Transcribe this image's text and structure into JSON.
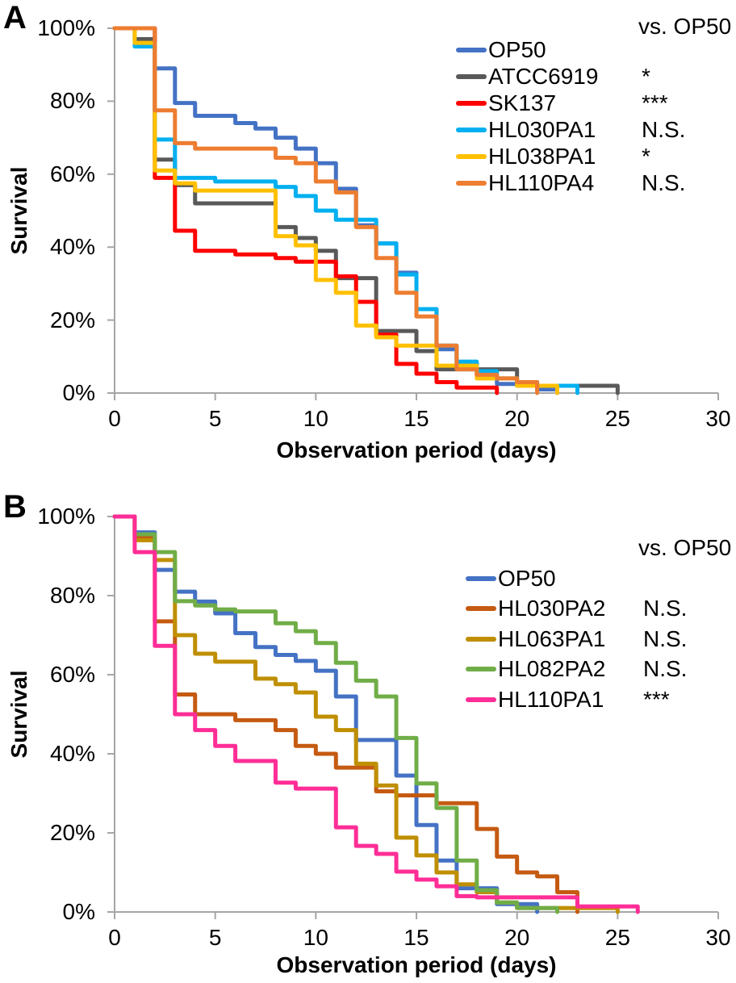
{
  "chart_data": [
    {
      "type": "line",
      "subtype": "kaplan-meier-step",
      "panel": "A",
      "xlabel": "Observation period (days)",
      "ylabel": "Survival",
      "legend_header": "vs. OP50",
      "xlim": [
        0,
        30
      ],
      "ylim": [
        0,
        100
      ],
      "x_ticks": [
        0,
        5,
        10,
        15,
        20,
        25,
        30
      ],
      "x_tick_labels": [
        "0",
        "5",
        "10",
        "15",
        "20",
        "25",
        "30"
      ],
      "y_tick_labels": [
        "100%",
        "80%",
        "60%",
        "40%",
        "20%",
        "0%"
      ],
      "grid": false,
      "legend_position": "upper right",
      "axis_color": "#A6A6A6",
      "series": [
        {
          "name": "OP50",
          "color": "#4472C4",
          "significance_vs_op50": "",
          "points": [
            [
              0,
              100
            ],
            [
              2,
              89
            ],
            [
              3,
              79.5
            ],
            [
              4,
              76
            ],
            [
              6,
              74
            ],
            [
              7,
              72.5
            ],
            [
              8,
              70
            ],
            [
              9,
              67
            ],
            [
              10,
              63
            ],
            [
              11,
              56
            ],
            [
              12,
              46
            ],
            [
              13,
              41
            ],
            [
              14,
              33
            ],
            [
              15,
              23
            ],
            [
              16,
              12
            ],
            [
              17,
              8
            ],
            [
              18,
              5
            ],
            [
              19,
              2.5
            ],
            [
              21,
              1
            ],
            [
              22,
              0
            ]
          ]
        },
        {
          "name": "ATCC6919",
          "color": "#595959",
          "significance_vs_op50": "*",
          "points": [
            [
              0,
              100
            ],
            [
              1,
              97
            ],
            [
              2,
              64
            ],
            [
              3,
              57
            ],
            [
              4,
              52
            ],
            [
              8,
              45.5
            ],
            [
              9,
              42.5
            ],
            [
              10,
              39
            ],
            [
              11,
              31.5
            ],
            [
              13,
              17
            ],
            [
              15,
              11.5
            ],
            [
              16,
              6.5
            ],
            [
              20,
              2
            ],
            [
              25,
              0
            ]
          ]
        },
        {
          "name": "SK137",
          "color": "#FF0000",
          "significance_vs_op50": "***",
          "points": [
            [
              0,
              100
            ],
            [
              2,
              59
            ],
            [
              3,
              44.5
            ],
            [
              4,
              39
            ],
            [
              6,
              38
            ],
            [
              8,
              37
            ],
            [
              9,
              36
            ],
            [
              11,
              32
            ],
            [
              12,
              25
            ],
            [
              13,
              16
            ],
            [
              14,
              8
            ],
            [
              15,
              5.3
            ],
            [
              16,
              3
            ],
            [
              17,
              1.5
            ],
            [
              19,
              0
            ]
          ]
        },
        {
          "name": "HL030PA1",
          "color": "#00B0F0",
          "significance_vs_op50": "N.S.",
          "points": [
            [
              0,
              100
            ],
            [
              1,
              95
            ],
            [
              2,
              69.5
            ],
            [
              3,
              59
            ],
            [
              5,
              58
            ],
            [
              8,
              56.5
            ],
            [
              9,
              54
            ],
            [
              10,
              50
            ],
            [
              11,
              47.5
            ],
            [
              13,
              41
            ],
            [
              14,
              32.5
            ],
            [
              15,
              23
            ],
            [
              16,
              13
            ],
            [
              17,
              8.6
            ],
            [
              18,
              6
            ],
            [
              19,
              4
            ],
            [
              20,
              3
            ],
            [
              21,
              2
            ],
            [
              23,
              0
            ]
          ]
        },
        {
          "name": "HL038PA1",
          "color": "#FFC000",
          "significance_vs_op50": "*",
          "points": [
            [
              0,
              100
            ],
            [
              1,
              96
            ],
            [
              2,
              61
            ],
            [
              3,
              57.5
            ],
            [
              4,
              55.5
            ],
            [
              8,
              43
            ],
            [
              9,
              40.5
            ],
            [
              10,
              31
            ],
            [
              11,
              27.5
            ],
            [
              12,
              18.5
            ],
            [
              13,
              15.3
            ],
            [
              14,
              13
            ],
            [
              16,
              7.5
            ],
            [
              18,
              4
            ],
            [
              20,
              2
            ],
            [
              22,
              0
            ]
          ]
        },
        {
          "name": "HL110PA4",
          "color": "#ED7D31",
          "significance_vs_op50": "N.S.",
          "points": [
            [
              0,
              100
            ],
            [
              2,
              77.5
            ],
            [
              3,
              68.5
            ],
            [
              4,
              67
            ],
            [
              8,
              64.5
            ],
            [
              9,
              63
            ],
            [
              10,
              58
            ],
            [
              11,
              55
            ],
            [
              12,
              45.5
            ],
            [
              13,
              37
            ],
            [
              14,
              27.5
            ],
            [
              15,
              21
            ],
            [
              16,
              13
            ],
            [
              17,
              6.5
            ],
            [
              18,
              5
            ],
            [
              19,
              4
            ],
            [
              20,
              3
            ],
            [
              21,
              0
            ]
          ]
        }
      ]
    },
    {
      "type": "line",
      "subtype": "kaplan-meier-step",
      "panel": "B",
      "xlabel": "Observation period (days)",
      "ylabel": "Survival",
      "legend_header": "vs. OP50",
      "xlim": [
        0,
        30
      ],
      "ylim": [
        0,
        100
      ],
      "x_ticks": [
        0,
        5,
        10,
        15,
        20,
        25,
        30
      ],
      "x_tick_labels": [
        "0",
        "5",
        "10",
        "15",
        "20",
        "25",
        "30"
      ],
      "y_tick_labels": [
        "100%",
        "80%",
        "60%",
        "40%",
        "20%",
        "0%"
      ],
      "grid": false,
      "legend_position": "upper right",
      "axis_color": "#A6A6A6",
      "series": [
        {
          "name": "OP50",
          "color": "#4472C4",
          "significance_vs_op50": "",
          "points": [
            [
              0,
              100
            ],
            [
              1,
              96
            ],
            [
              2,
              86.5
            ],
            [
              3,
              81
            ],
            [
              4,
              78.5
            ],
            [
              5,
              75.5
            ],
            [
              6,
              70.5
            ],
            [
              7,
              67
            ],
            [
              8,
              65
            ],
            [
              9,
              63.5
            ],
            [
              10,
              61
            ],
            [
              11,
              54.5
            ],
            [
              12,
              43.5
            ],
            [
              14,
              34.5
            ],
            [
              15,
              22
            ],
            [
              16,
              13
            ],
            [
              17,
              6
            ],
            [
              19,
              2
            ],
            [
              21,
              0
            ]
          ]
        },
        {
          "name": "HL030PA2",
          "color": "#C55A11",
          "significance_vs_op50": "N.S.",
          "points": [
            [
              0,
              100
            ],
            [
              1,
              94.5
            ],
            [
              2,
              73.5
            ],
            [
              3,
              55
            ],
            [
              4,
              50
            ],
            [
              6,
              48.5
            ],
            [
              8,
              46
            ],
            [
              9,
              42
            ],
            [
              10,
              40
            ],
            [
              11,
              36.5
            ],
            [
              13,
              30.5
            ],
            [
              14,
              29.5
            ],
            [
              16,
              27.5
            ],
            [
              18,
              21
            ],
            [
              19,
              14
            ],
            [
              20,
              10
            ],
            [
              21,
              9
            ],
            [
              22,
              5
            ],
            [
              23,
              0
            ]
          ]
        },
        {
          "name": "HL063PA1",
          "color": "#BF8F00",
          "significance_vs_op50": "N.S.",
          "points": [
            [
              0,
              100
            ],
            [
              1,
              94
            ],
            [
              2,
              89
            ],
            [
              3,
              70
            ],
            [
              4,
              65.3
            ],
            [
              5,
              63.3
            ],
            [
              7,
              59
            ],
            [
              8,
              57.6
            ],
            [
              9,
              55.5
            ],
            [
              10,
              49.4
            ],
            [
              11,
              46
            ],
            [
              12,
              37.5
            ],
            [
              13,
              32
            ],
            [
              14,
              18.8
            ],
            [
              15,
              14.3
            ],
            [
              16,
              10
            ],
            [
              17,
              7
            ],
            [
              18,
              5
            ],
            [
              19,
              2.4
            ],
            [
              20,
              1
            ],
            [
              25,
              0
            ]
          ]
        },
        {
          "name": "HL082PA2",
          "color": "#70AD47",
          "significance_vs_op50": "N.S.",
          "points": [
            [
              0,
              100
            ],
            [
              1,
              95.5
            ],
            [
              2,
              91
            ],
            [
              3,
              78.6
            ],
            [
              4,
              77.5
            ],
            [
              5,
              76.5
            ],
            [
              6,
              76
            ],
            [
              8,
              73
            ],
            [
              9,
              71
            ],
            [
              10,
              68
            ],
            [
              11,
              63
            ],
            [
              12,
              58.5
            ],
            [
              13,
              54.5
            ],
            [
              14,
              44
            ],
            [
              15,
              32.5
            ],
            [
              16,
              26.3
            ],
            [
              17,
              13
            ],
            [
              18,
              5.5
            ],
            [
              19,
              2.4
            ],
            [
              20,
              1
            ],
            [
              22,
              0
            ]
          ]
        },
        {
          "name": "HL110PA1",
          "color": "#FF2D96",
          "significance_vs_op50": "***",
          "points": [
            [
              0,
              100
            ],
            [
              1,
              91
            ],
            [
              2,
              67.3
            ],
            [
              3,
              50
            ],
            [
              4,
              46
            ],
            [
              5,
              42
            ],
            [
              6,
              38.2
            ],
            [
              8,
              32.7
            ],
            [
              9,
              31.2
            ],
            [
              11,
              21.4
            ],
            [
              12,
              16.7
            ],
            [
              13,
              14.7
            ],
            [
              14,
              10.2
            ],
            [
              15,
              8.2
            ],
            [
              16,
              6.5
            ],
            [
              17,
              4
            ],
            [
              18,
              3.7
            ],
            [
              23,
              1.4
            ],
            [
              26,
              0
            ]
          ]
        }
      ]
    }
  ]
}
